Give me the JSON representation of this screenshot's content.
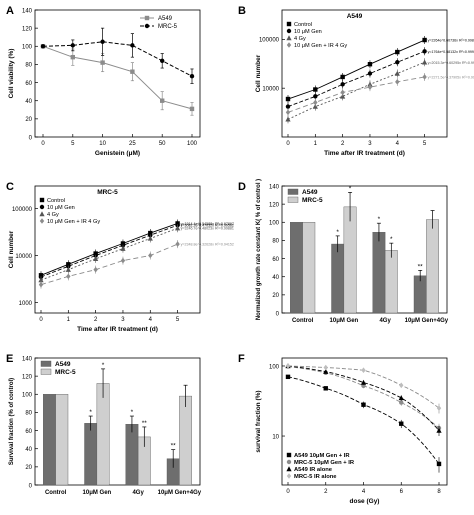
{
  "figure": {
    "panels": [
      "A",
      "B",
      "C",
      "D",
      "E",
      "F"
    ]
  },
  "colors": {
    "black": "#000000",
    "dark_gray": "#555555",
    "gray": "#8c8c8c",
    "light_gray": "#bdbdbd",
    "bar_dark": "#6e6e6e",
    "bar_light": "#cfcfcf"
  },
  "chart_data": [
    {
      "panel": "A",
      "type": "line",
      "title": "",
      "xlabel": "Genistein (μM)",
      "ylabel": "Cell viability (%)",
      "x": [
        0,
        5,
        10,
        25,
        50,
        100
      ],
      "xticks": [
        "0",
        "5",
        "10",
        "25",
        "50",
        "100"
      ],
      "ylim": [
        0,
        140
      ],
      "yticks": [
        0,
        20,
        40,
        60,
        80,
        100,
        120,
        140
      ],
      "series": [
        {
          "name": "A549",
          "values": [
            100,
            88,
            82,
            72,
            40,
            31
          ],
          "err": [
            0,
            9,
            10,
            10,
            10,
            7
          ]
        },
        {
          "name": "MRC-5",
          "values": [
            100,
            101,
            105,
            101,
            84,
            67
          ],
          "err": [
            0,
            6,
            15,
            13,
            8,
            8
          ]
        }
      ],
      "legend": "top-right"
    },
    {
      "panel": "B",
      "type": "scatter",
      "title": "A549",
      "xlabel": "Time after IR treatment (d)",
      "ylabel": "Cell number",
      "x": [
        0,
        1,
        2,
        3,
        4,
        5
      ],
      "yscale": "log",
      "yticks": [
        "10000",
        "100000"
      ],
      "series": [
        {
          "name": "Control",
          "values": [
            6000,
            9400,
            17000,
            31000,
            55000,
            97000
          ],
          "fit": "y=2264e^0.60736x  R²=0.99891"
        },
        {
          "name": "10 μM  Gen",
          "values": [
            4200,
            6800,
            12000,
            20000,
            34000,
            57000
          ],
          "fit": "y=1764e^0.58132x  R²=0.99944"
        },
        {
          "name": "4 Gy",
          "values": [
            2300,
            4200,
            6800,
            12000,
            20000,
            34000
          ],
          "fit": "y=2015.3e^0.60295x  R²=0.99898"
        },
        {
          "name": "10 μM  Gen + IR 4 Gy",
          "values": [
            3200,
            5100,
            8200,
            10500,
            13500,
            17000
          ],
          "fit": "y=2271.5e^0.37905x  R²=0.99602"
        }
      ],
      "legend": "top-left"
    },
    {
      "panel": "C",
      "type": "scatter",
      "title": "MRC-5",
      "xlabel": "Time after IR treatment (d)",
      "ylabel": "Cell number",
      "x": [
        0,
        1,
        2,
        3,
        4,
        5
      ],
      "yscale": "log",
      "yticks": [
        "1000",
        "10000",
        "100000"
      ],
      "series": [
        {
          "name": "Control",
          "values": [
            3800,
            6500,
            11000,
            18000,
            30000,
            48000
          ],
          "fit": "y=1914.4e^0.54588x  R²=0.97897"
        },
        {
          "name": "10 μM  Gen",
          "values": [
            3500,
            5900,
            10000,
            16500,
            27000,
            44000
          ],
          "fit": "y=3082.2e^0.47032x  R²=0.99562"
        },
        {
          "name": "4 Gy",
          "values": [
            3000,
            5000,
            8500,
            14000,
            23000,
            38000
          ],
          "fit": "y=3246.7e^0.48023x  R²=0.99881"
        },
        {
          "name": "10 μM  Gen + IR 4 Gy",
          "values": [
            2400,
            3600,
            5000,
            7800,
            10000,
            17500
          ],
          "fit": "y=2348.8e^0.32628x  R²=0.94152"
        }
      ],
      "legend": "top-left"
    },
    {
      "panel": "D",
      "type": "bar",
      "title": "",
      "xlabel": "",
      "ylabel": "Normalized growth rate constant K( % of control )",
      "categories": [
        "Control",
        "10μM Gen",
        "4Gy",
        "10μM Gen+4Gy"
      ],
      "ylim": [
        0,
        140
      ],
      "yticks": [
        0,
        20,
        40,
        60,
        80,
        100,
        120,
        140
      ],
      "series": [
        {
          "name": "A549",
          "values": [
            100,
            76,
            89,
            41
          ],
          "err": [
            0,
            9,
            10,
            6
          ],
          "sig": [
            "",
            "*",
            "*",
            "**"
          ]
        },
        {
          "name": "MRC-5",
          "values": [
            100,
            117,
            69,
            103
          ],
          "err": [
            0,
            16,
            8,
            10
          ],
          "sig": [
            "",
            "*",
            "*",
            ""
          ]
        }
      ],
      "legend": "top-left"
    },
    {
      "panel": "E",
      "type": "bar",
      "title": "",
      "xlabel": "",
      "ylabel": "Survival fraction (% of control)",
      "categories": [
        "Control",
        "10μM Gen",
        "4Gy",
        "10μM Gen+4Gy"
      ],
      "ylim": [
        0,
        140
      ],
      "yticks": [
        0,
        20,
        40,
        60,
        80,
        100,
        120,
        140
      ],
      "series": [
        {
          "name": "A549",
          "values": [
            100,
            68,
            67,
            29
          ],
          "err": [
            0,
            8,
            9,
            10
          ],
          "sig": [
            "",
            "*",
            "*",
            "**"
          ]
        },
        {
          "name": "MRC-5",
          "values": [
            100,
            112,
            53,
            98
          ],
          "err": [
            0,
            16,
            11,
            12
          ],
          "sig": [
            "",
            "*",
            "**",
            ""
          ]
        }
      ],
      "legend": "top-left"
    },
    {
      "panel": "F",
      "type": "scatter",
      "title": "",
      "xlabel": "dose (Gy)",
      "ylabel": "survival fraction (%)",
      "x": [
        0,
        2,
        4,
        6,
        8
      ],
      "yscale": "log",
      "yticks": [
        "10",
        "100"
      ],
      "xticks": [
        "0",
        "2",
        "4",
        "6",
        "8"
      ],
      "series": [
        {
          "name": "A549  10μM Gen + IR",
          "values": [
            70,
            48,
            28,
            15,
            4
          ],
          "err": [
            4,
            3,
            3,
            2,
            1
          ]
        },
        {
          "name": "MRC-5  10μM Gen + IR",
          "values": [
            98,
            80,
            52,
            30,
            13
          ],
          "err": [
            5,
            5,
            4,
            3,
            2
          ]
        },
        {
          "name": "A549  IR alone",
          "values": [
            100,
            83,
            58,
            35,
            12
          ],
          "err": [
            3,
            5,
            4,
            3,
            2
          ]
        },
        {
          "name": "MRC-5  IR alone",
          "values": [
            100,
            95,
            87,
            53,
            25
          ],
          "err": [
            3,
            4,
            4,
            4,
            4
          ]
        }
      ],
      "legend": "bottom-left"
    }
  ]
}
